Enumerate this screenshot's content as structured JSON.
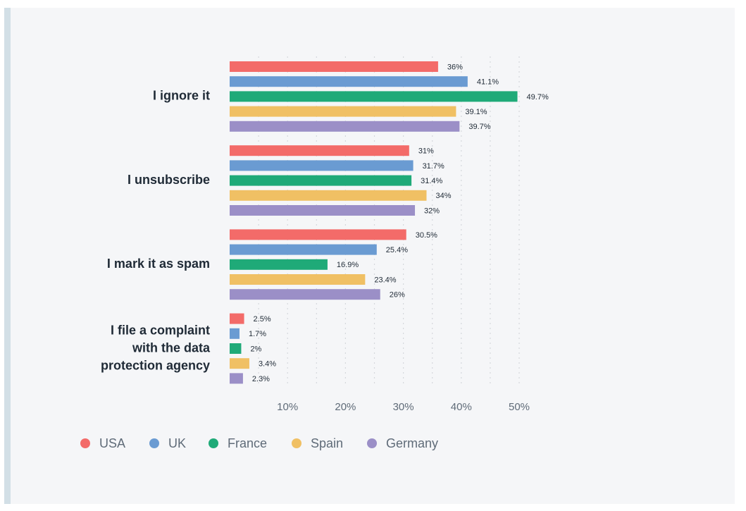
{
  "chart_data": {
    "type": "bar",
    "orientation": "horizontal",
    "title": "",
    "xlabel": "",
    "ylabel": "",
    "xlim": [
      0,
      50
    ],
    "grid": true,
    "tick_values": [
      10,
      20,
      30,
      40,
      50
    ],
    "tick_labels": [
      "10%",
      "20%",
      "30%",
      "40%",
      "50%"
    ],
    "categories": [
      "I ignore it",
      "I unsubscribe",
      "I mark it as spam",
      "I file a complaint with the data protection agency"
    ],
    "category_display": [
      [
        "I ignore it"
      ],
      [
        "I unsubscribe"
      ],
      [
        "I mark it as spam"
      ],
      [
        "I file a complaint",
        "with the data",
        "protection agency"
      ]
    ],
    "series": [
      {
        "name": "USA",
        "color": "#f36b69",
        "values": [
          36,
          31,
          30.5,
          2.5
        ],
        "labels": [
          "36%",
          "31%",
          "30.5%",
          "2.5%"
        ]
      },
      {
        "name": "UK",
        "color": "#6a9bd2",
        "values": [
          41.1,
          31.7,
          25.4,
          1.7
        ],
        "labels": [
          "41.1%",
          "31.7%",
          "25.4%",
          "1.7%"
        ]
      },
      {
        "name": "France",
        "color": "#1faa78",
        "values": [
          49.7,
          31.4,
          16.9,
          2
        ],
        "labels": [
          "49.7%",
          "31.4%",
          "16.9%",
          "2%"
        ]
      },
      {
        "name": "Spain",
        "color": "#f0c064",
        "values": [
          39.1,
          34,
          23.4,
          3.4
        ],
        "labels": [
          "39.1%",
          "34%",
          "23.4%",
          "3.4%"
        ]
      },
      {
        "name": "Germany",
        "color": "#9b8fc7",
        "values": [
          39.7,
          32,
          26,
          2.3
        ],
        "labels": [
          "39.7%",
          "32%",
          "26%",
          "2.3%"
        ]
      }
    ],
    "legend_position": "bottom-left"
  }
}
